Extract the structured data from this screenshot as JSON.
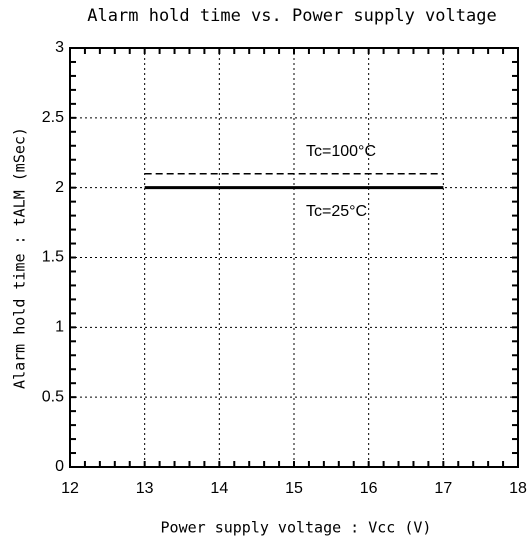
{
  "chart_data": {
    "type": "line",
    "title": "Alarm hold time vs. Power supply voltage",
    "x_label": "Power supply voltage : Vcc (V)",
    "y_label": "Alarm hold time : tALM (mSec)",
    "x": [
      13,
      17
    ],
    "series": [
      {
        "name": "Tc=100°C",
        "color": "#000000",
        "dash": true,
        "values": [
          2.1,
          2.1
        ]
      },
      {
        "name": "Tc=25°C",
        "color": "#000000",
        "dash": false,
        "values": [
          2,
          2
        ]
      }
    ],
    "xlim": [
      12,
      18
    ],
    "xticks": [
      12,
      13,
      14,
      15,
      16,
      17,
      18
    ],
    "ylim": [
      0,
      3
    ],
    "yticks": [
      0,
      0.5,
      1,
      1.5,
      2,
      2.5,
      3
    ],
    "grid": true
  }
}
